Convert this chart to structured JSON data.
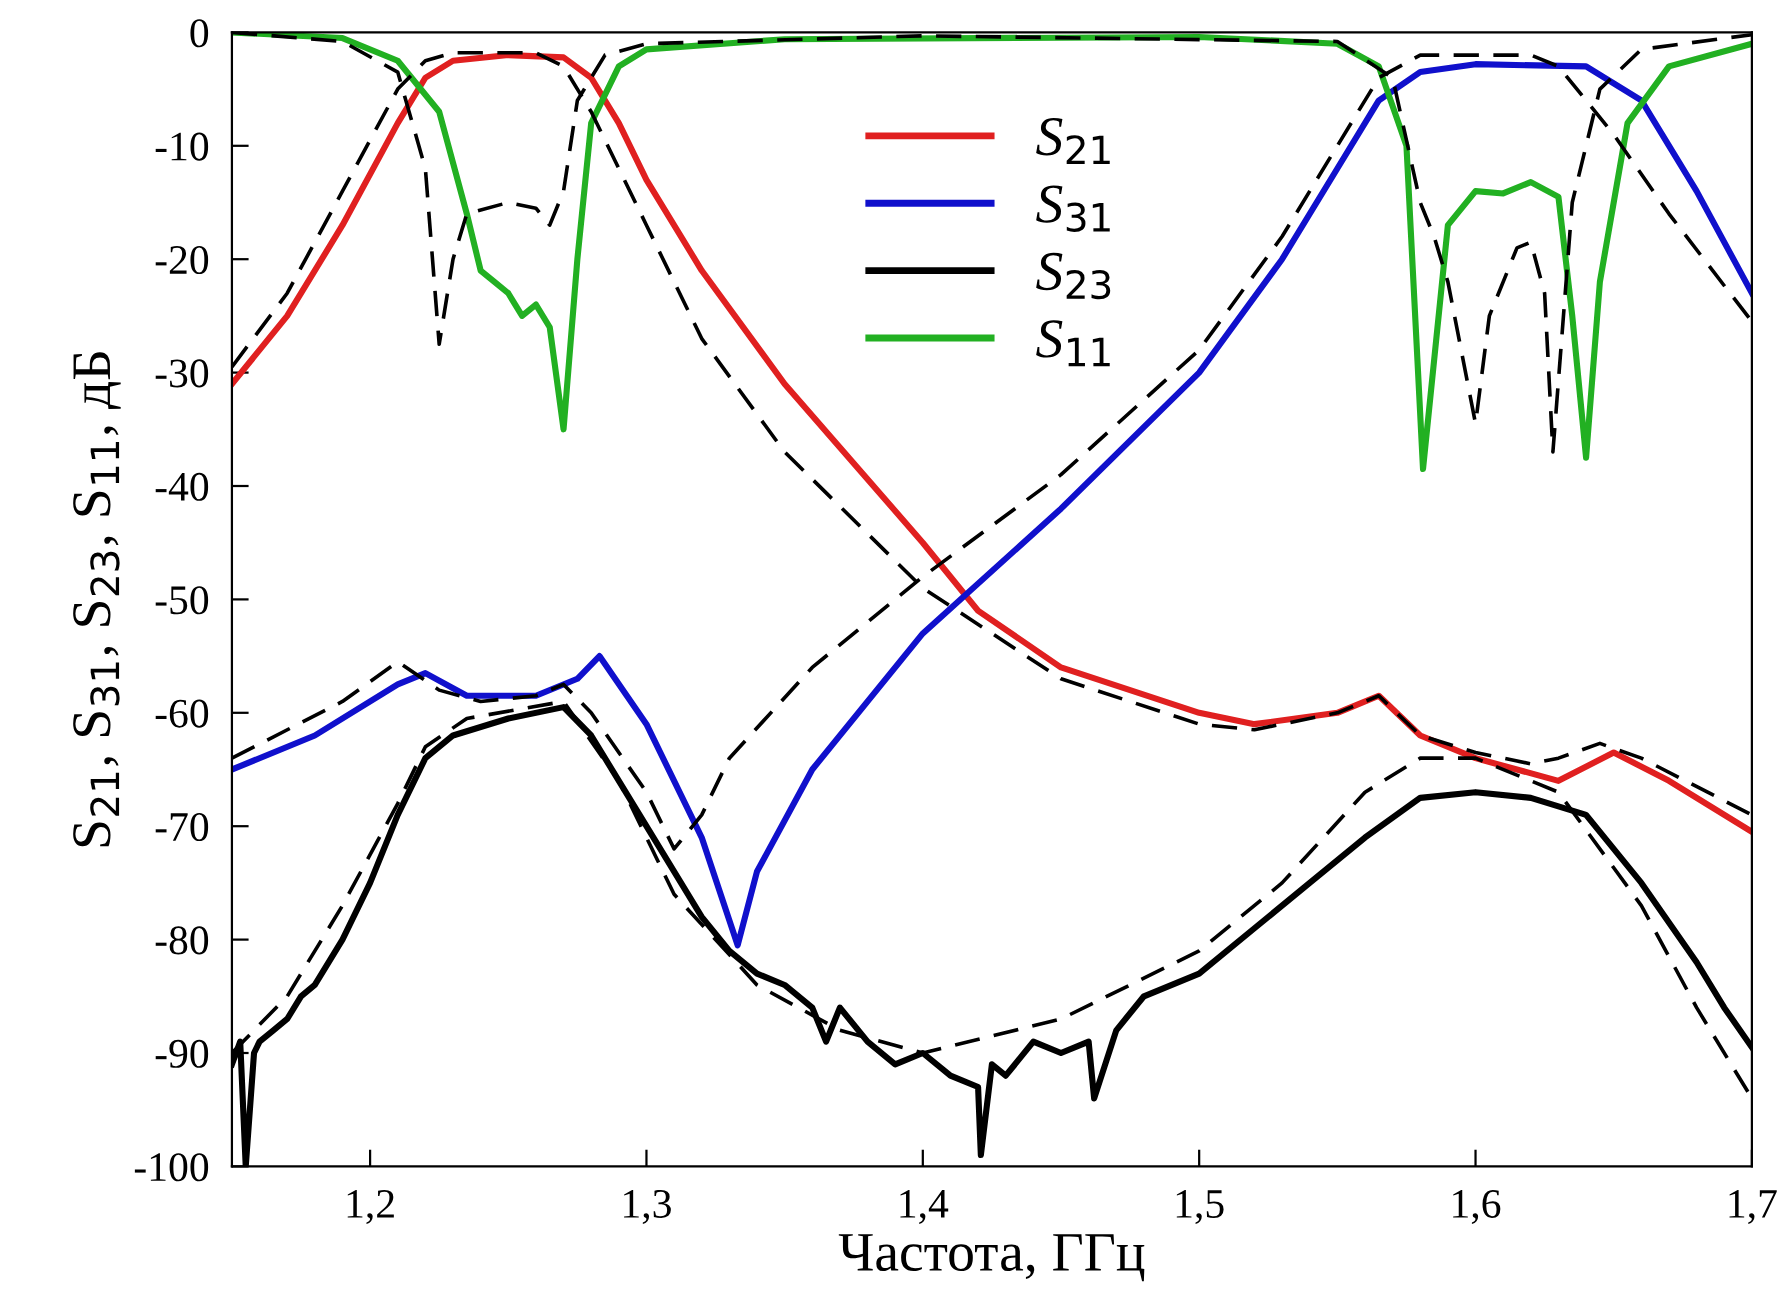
{
  "chart_data": {
    "type": "line",
    "xlabel": "Частота, ГГц",
    "ylabel": "S$_{21}$, S$_{31}$, S$_{23}$, S$_{11}$, дБ",
    "xlim": [
      1.15,
      1.7
    ],
    "ylim": [
      -100,
      0
    ],
    "xticks": [
      {
        "value": 1.2,
        "label": "1,2"
      },
      {
        "value": 1.3,
        "label": "1,3"
      },
      {
        "value": 1.4,
        "label": "1,4"
      },
      {
        "value": 1.5,
        "label": "1,5"
      },
      {
        "value": 1.6,
        "label": "1,6"
      },
      {
        "value": 1.7,
        "label": "1,7"
      }
    ],
    "yticks": [
      -100,
      -90,
      -80,
      -70,
      -60,
      -50,
      -40,
      -30,
      -20,
      -10,
      0
    ],
    "grid": false,
    "legend": "top",
    "marker": "none",
    "series": [
      {
        "name": "S$_{21}$",
        "color": "#e02020",
        "line_style": "solid",
        "x": [
          1.15,
          1.17,
          1.19,
          1.21,
          1.22,
          1.23,
          1.25,
          1.27,
          1.28,
          1.29,
          1.3,
          1.32,
          1.35,
          1.4,
          1.42,
          1.45,
          1.5,
          1.52,
          1.55,
          1.565,
          1.58,
          1.6,
          1.63,
          1.65,
          1.67,
          1.7
        ],
        "values": [
          -31,
          -25,
          -17,
          -8,
          -4,
          -2.5,
          -2,
          -2.2,
          -4,
          -8,
          -13,
          -21,
          -31,
          -45,
          -51,
          -56,
          -60,
          -61,
          -60,
          -58.5,
          -62,
          -64,
          -66,
          -63.5,
          -66,
          -70.5
        ]
      },
      {
        "name": "S$_{31}$",
        "color": "#1010cc",
        "line_style": "solid",
        "x": [
          1.15,
          1.18,
          1.21,
          1.22,
          1.235,
          1.26,
          1.275,
          1.283,
          1.3,
          1.32,
          1.333,
          1.34,
          1.36,
          1.4,
          1.45,
          1.5,
          1.53,
          1.55,
          1.565,
          1.58,
          1.6,
          1.64,
          1.66,
          1.68,
          1.7
        ],
        "values": [
          -65,
          -62,
          -57.5,
          -56.5,
          -58.5,
          -58.5,
          -57,
          -55,
          -61,
          -71,
          -80.5,
          -74,
          -65,
          -53,
          -42,
          -30,
          -20,
          -12,
          -6,
          -3.5,
          -2.8,
          -3,
          -6,
          -14,
          -23
        ]
      },
      {
        "name": "S$_{23}$",
        "color": "#000000",
        "line_style": "solid",
        "x": [
          1.15,
          1.153,
          1.155,
          1.158,
          1.16,
          1.165,
          1.17,
          1.175,
          1.18,
          1.19,
          1.2,
          1.21,
          1.22,
          1.23,
          1.25,
          1.27,
          1.28,
          1.3,
          1.32,
          1.33,
          1.34,
          1.35,
          1.36,
          1.365,
          1.37,
          1.38,
          1.39,
          1.4,
          1.41,
          1.42,
          1.421,
          1.425,
          1.43,
          1.44,
          1.45,
          1.46,
          1.462,
          1.47,
          1.48,
          1.5,
          1.52,
          1.54,
          1.56,
          1.58,
          1.6,
          1.62,
          1.64,
          1.66,
          1.68,
          1.69,
          1.7
        ],
        "values": [
          -91,
          -89,
          -100,
          -90,
          -89,
          -88,
          -87,
          -85,
          -84,
          -80,
          -75,
          -69,
          -64,
          -62,
          -60.5,
          -59.5,
          -62,
          -70,
          -78,
          -81,
          -83,
          -84,
          -86,
          -89,
          -86,
          -89,
          -91,
          -90,
          -92,
          -93,
          -99,
          -91,
          -92,
          -89,
          -90,
          -89,
          -94,
          -88,
          -85,
          -83,
          -79,
          -75,
          -71,
          -67.5,
          -67,
          -67.5,
          -69,
          -75,
          -82,
          -86,
          -89.5
        ]
      },
      {
        "name": "S$_{11}$",
        "color": "#22b022",
        "line_style": "solid",
        "x": [
          1.15,
          1.19,
          1.21,
          1.225,
          1.235,
          1.24,
          1.245,
          1.25,
          1.255,
          1.26,
          1.265,
          1.27,
          1.275,
          1.28,
          1.29,
          1.3,
          1.35,
          1.5,
          1.55,
          1.565,
          1.575,
          1.581,
          1.59,
          1.6,
          1.61,
          1.62,
          1.63,
          1.635,
          1.64,
          1.645,
          1.655,
          1.67,
          1.7
        ],
        "values": [
          0,
          -0.5,
          -2.5,
          -7,
          -16,
          -21,
          -22,
          -23,
          -25,
          -24,
          -26,
          -35,
          -20,
          -8,
          -3,
          -1.5,
          -0.6,
          -0.4,
          -1,
          -3,
          -10,
          -38.5,
          -17,
          -14,
          -14.2,
          -13.2,
          -14.5,
          -25,
          -37.5,
          -22,
          -8,
          -3,
          -1
        ]
      },
      {
        "color": "#000000",
        "line_style": "dashed",
        "x": [
          1.15,
          1.17,
          1.19,
          1.21,
          1.22,
          1.23,
          1.26,
          1.27,
          1.28,
          1.3,
          1.32,
          1.35,
          1.4,
          1.45,
          1.5,
          1.52,
          1.55,
          1.565,
          1.58,
          1.6,
          1.62,
          1.63,
          1.645,
          1.66,
          1.7
        ],
        "values": [
          -29.5,
          -23,
          -14,
          -5,
          -2.5,
          -1.8,
          -1.8,
          -3,
          -7,
          -17,
          -27,
          -37,
          -49,
          -57,
          -61,
          -61.5,
          -60,
          -58.5,
          -62,
          -63.5,
          -64.5,
          -64,
          -62.7,
          -64,
          -69
        ]
      },
      {
        "color": "#000000",
        "line_style": "dashed",
        "x": [
          1.15,
          1.19,
          1.21,
          1.225,
          1.24,
          1.26,
          1.27,
          1.28,
          1.3,
          1.31,
          1.32,
          1.33,
          1.36,
          1.4,
          1.45,
          1.5,
          1.53,
          1.55,
          1.565,
          1.58,
          1.62,
          1.63,
          1.65,
          1.67,
          1.7
        ],
        "values": [
          -64,
          -59,
          -55.5,
          -58,
          -59,
          -58.5,
          -57.5,
          -60,
          -67,
          -72,
          -69,
          -64,
          -56,
          -48,
          -39,
          -28,
          -18,
          -10,
          -4,
          -2,
          -2,
          -3,
          -9,
          -16,
          -25.5
        ]
      },
      {
        "color": "#000000",
        "line_style": "dashed",
        "x": [
          1.15,
          1.17,
          1.19,
          1.21,
          1.22,
          1.235,
          1.27,
          1.29,
          1.31,
          1.34,
          1.37,
          1.4,
          1.45,
          1.5,
          1.53,
          1.56,
          1.58,
          1.6,
          1.63,
          1.66,
          1.68,
          1.7
        ],
        "values": [
          -90,
          -85,
          -77,
          -68,
          -63,
          -60.5,
          -59,
          -66,
          -76,
          -84,
          -88,
          -90,
          -87,
          -81,
          -75,
          -67,
          -64,
          -64,
          -67,
          -77,
          -86,
          -94
        ]
      },
      {
        "color": "#000000",
        "line_style": "dashed",
        "x": [
          1.15,
          1.19,
          1.21,
          1.22,
          1.225,
          1.23,
          1.235,
          1.25,
          1.26,
          1.265,
          1.27,
          1.275,
          1.285,
          1.3,
          1.4,
          1.55,
          1.57,
          1.58,
          1.585,
          1.59,
          1.6,
          1.605,
          1.615,
          1.62,
          1.625,
          1.628,
          1.635,
          1.645,
          1.66,
          1.7
        ],
        "values": [
          0,
          -0.8,
          -3.5,
          -12,
          -27.5,
          -20,
          -16,
          -15,
          -15.5,
          -17,
          -14,
          -6,
          -2,
          -1,
          -0.3,
          -0.8,
          -4,
          -15,
          -18,
          -22,
          -34.5,
          -25,
          -19,
          -18.5,
          -23,
          -37,
          -15,
          -5,
          -1.5,
          -0.2
        ]
      }
    ]
  }
}
